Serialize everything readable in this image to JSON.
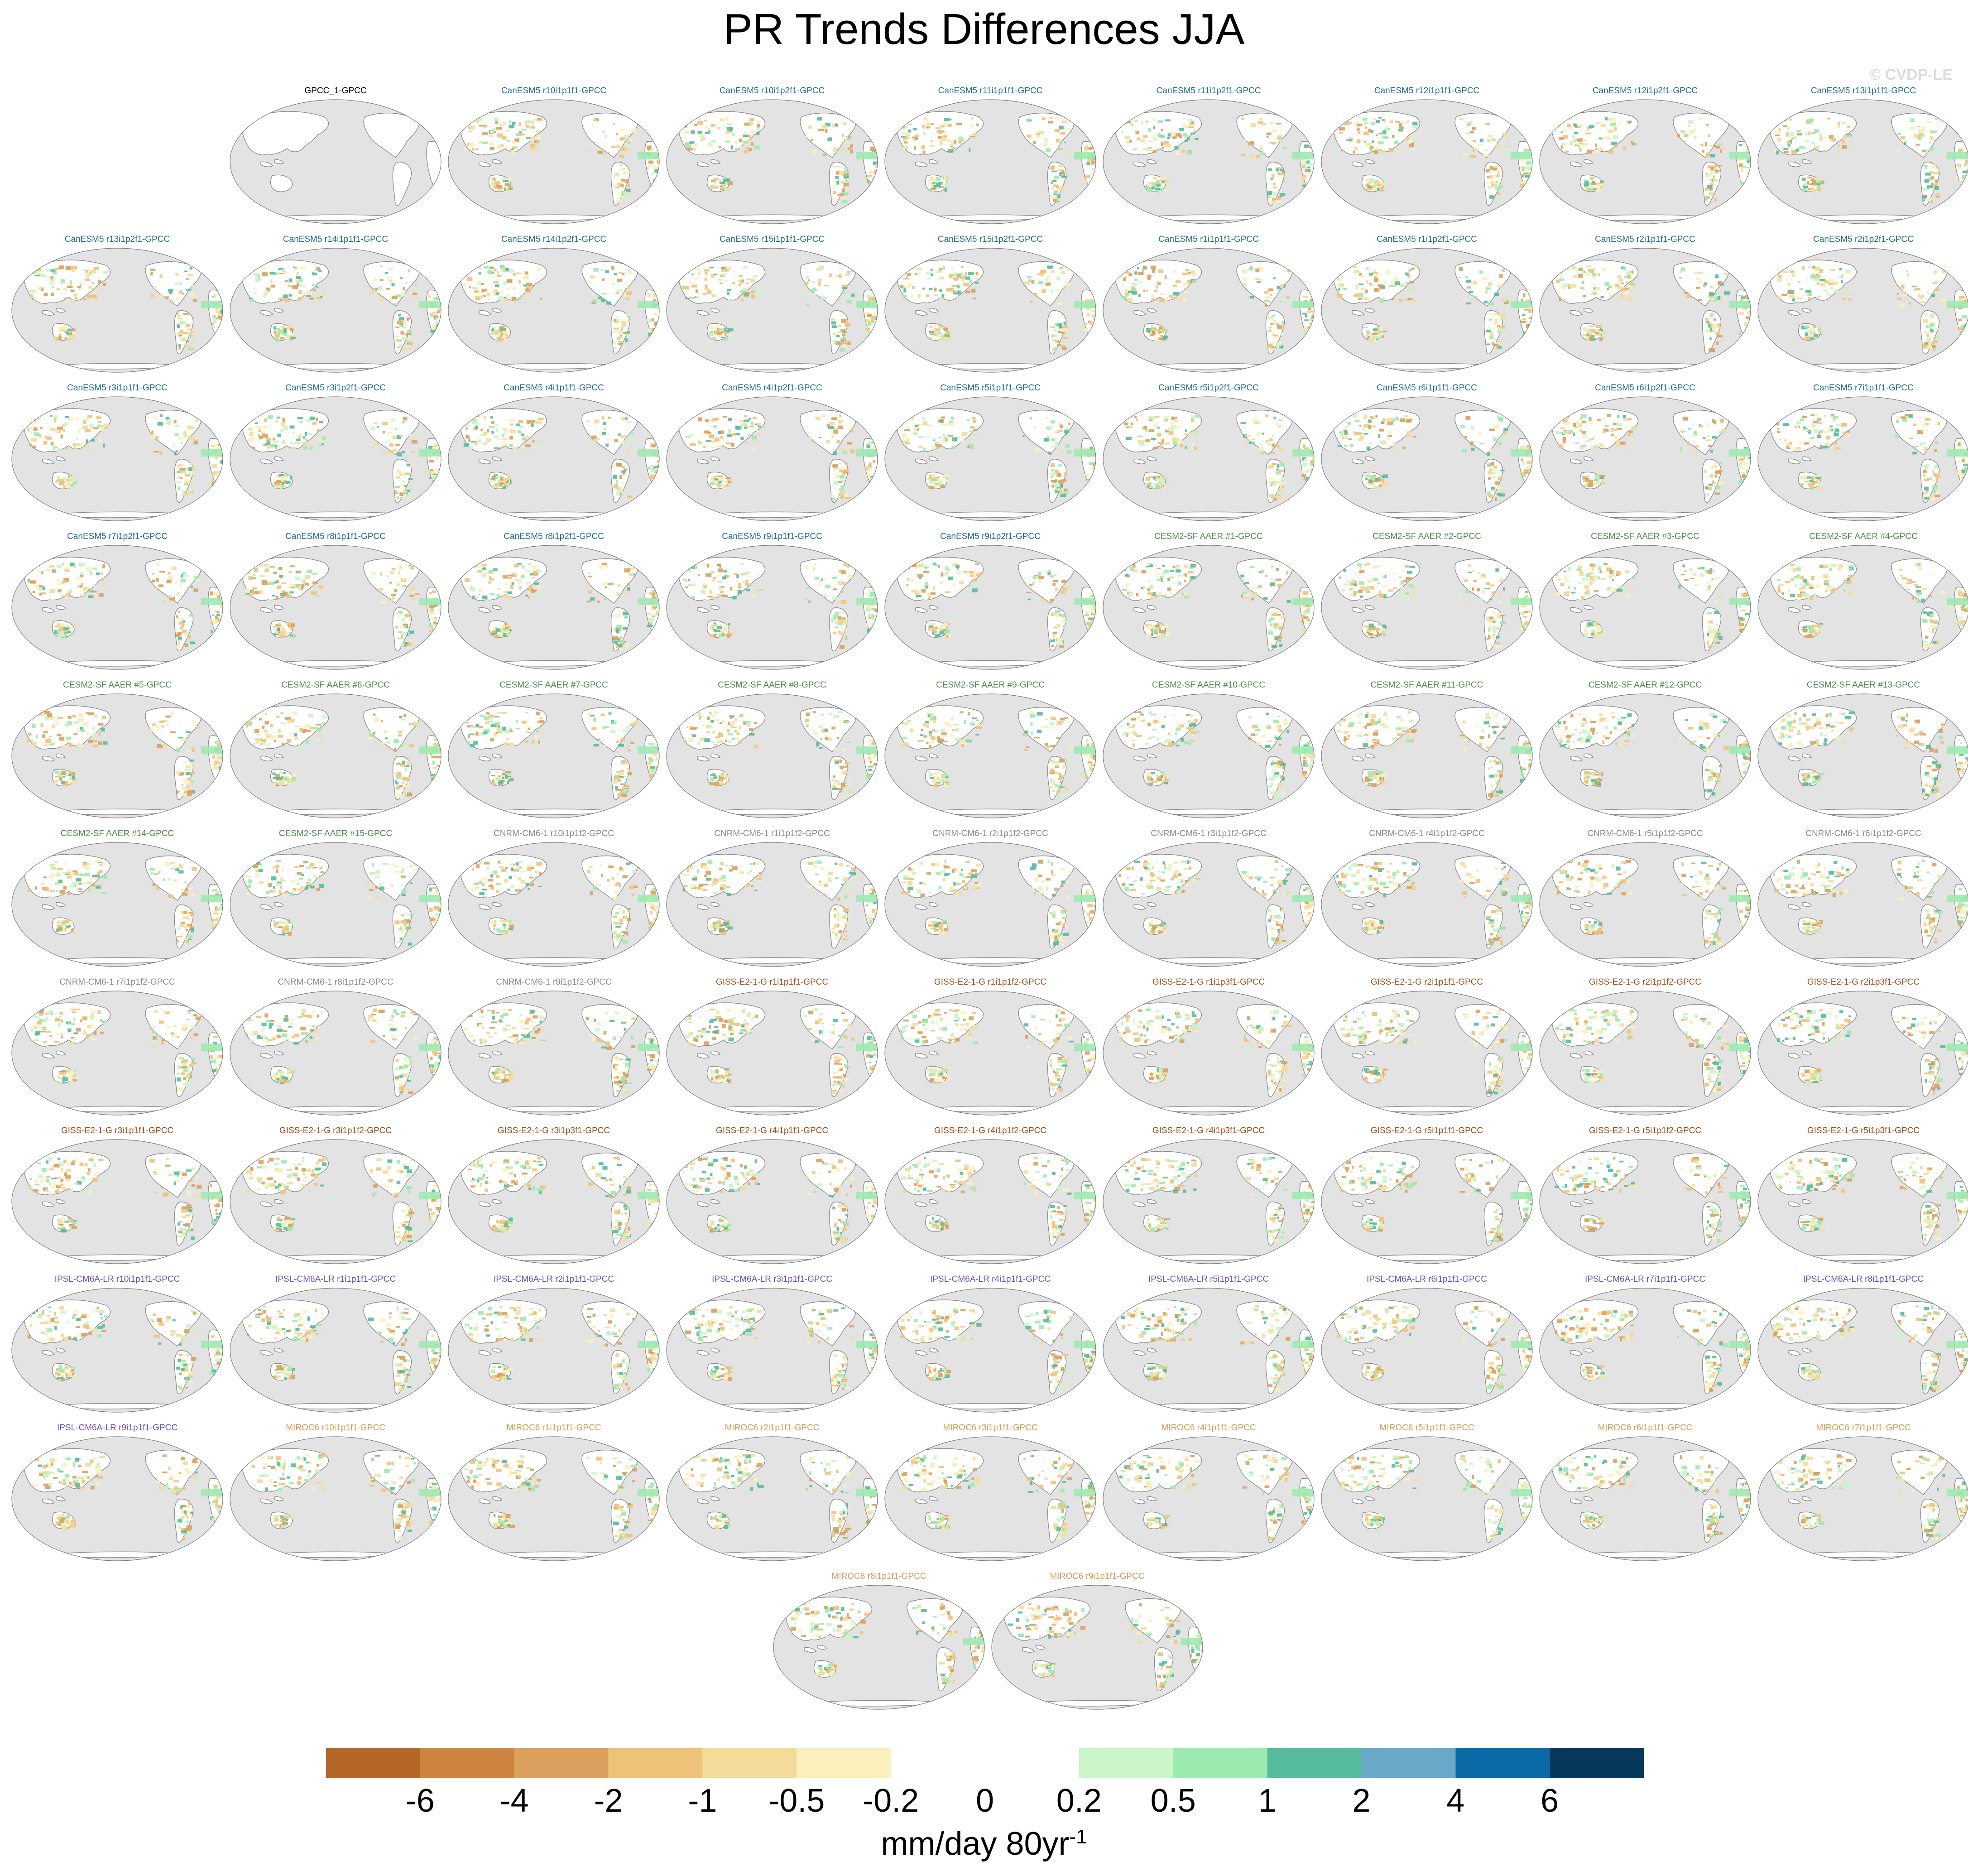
{
  "title": "PR Trends Differences JJA",
  "watermark": "© CVDP-LE",
  "colors": {
    "land": "#ffffff",
    "ocean": "#e3e3e3",
    "coast": "#8a8a8a",
    "CanESM5": "#1f6f8b",
    "CESM2": "#4f8a4f",
    "CNRM": "#8c8c8c",
    "GISS": "#a64a1a",
    "IPSL": "#6a4fc8",
    "MIROC": "#d99a5a",
    "obs": "#000000"
  },
  "panels": [
    {
      "label": "GPCC_1-GPCC",
      "model": "obs"
    },
    {
      "label": "CanESM5 r10i1p1f1-GPCC",
      "model": "CanESM5"
    },
    {
      "label": "CanESM5 r10i1p2f1-GPCC",
      "model": "CanESM5"
    },
    {
      "label": "CanESM5 r11i1p1f1-GPCC",
      "model": "CanESM5"
    },
    {
      "label": "CanESM5 r11i1p2f1-GPCC",
      "model": "CanESM5"
    },
    {
      "label": "CanESM5 r12i1p1f1-GPCC",
      "model": "CanESM5"
    },
    {
      "label": "CanESM5 r12i1p2f1-GPCC",
      "model": "CanESM5"
    },
    {
      "label": "CanESM5 r13i1p1f1-GPCC",
      "model": "CanESM5"
    },
    {
      "label": "CanESM5 r13i1p2f1-GPCC",
      "model": "CanESM5"
    },
    {
      "label": "CanESM5 r14i1p1f1-GPCC",
      "model": "CanESM5"
    },
    {
      "label": "CanESM5 r14i1p2f1-GPCC",
      "model": "CanESM5"
    },
    {
      "label": "CanESM5 r15i1p1f1-GPCC",
      "model": "CanESM5"
    },
    {
      "label": "CanESM5 r15i1p2f1-GPCC",
      "model": "CanESM5"
    },
    {
      "label": "CanESM5 r1i1p1f1-GPCC",
      "model": "CanESM5"
    },
    {
      "label": "CanESM5 r1i1p2f1-GPCC",
      "model": "CanESM5"
    },
    {
      "label": "CanESM5 r2i1p1f1-GPCC",
      "model": "CanESM5"
    },
    {
      "label": "CanESM5 r2i1p2f1-GPCC",
      "model": "CanESM5"
    },
    {
      "label": "CanESM5 r3i1p1f1-GPCC",
      "model": "CanESM5"
    },
    {
      "label": "CanESM5 r3i1p2f1-GPCC",
      "model": "CanESM5"
    },
    {
      "label": "CanESM5 r4i1p1f1-GPCC",
      "model": "CanESM5"
    },
    {
      "label": "CanESM5 r4i1p2f1-GPCC",
      "model": "CanESM5"
    },
    {
      "label": "CanESM5 r5i1p1f1-GPCC",
      "model": "CanESM5"
    },
    {
      "label": "CanESM5 r5i1p2f1-GPCC",
      "model": "CanESM5"
    },
    {
      "label": "CanESM5 r6i1p1f1-GPCC",
      "model": "CanESM5"
    },
    {
      "label": "CanESM5 r6i1p2f1-GPCC",
      "model": "CanESM5"
    },
    {
      "label": "CanESM5 r7i1p1f1-GPCC",
      "model": "CanESM5"
    },
    {
      "label": "CanESM5 r7i1p2f1-GPCC",
      "model": "CanESM5"
    },
    {
      "label": "CanESM5 r8i1p1f1-GPCC",
      "model": "CanESM5"
    },
    {
      "label": "CanESM5 r8i1p2f1-GPCC",
      "model": "CanESM5"
    },
    {
      "label": "CanESM5 r9i1p1f1-GPCC",
      "model": "CanESM5"
    },
    {
      "label": "CanESM5 r9i1p2f1-GPCC",
      "model": "CanESM5"
    },
    {
      "label": "CESM2-SF AAER #1-GPCC",
      "model": "CESM2"
    },
    {
      "label": "CESM2-SF AAER #2-GPCC",
      "model": "CESM2"
    },
    {
      "label": "CESM2-SF AAER #3-GPCC",
      "model": "CESM2"
    },
    {
      "label": "CESM2-SF AAER #4-GPCC",
      "model": "CESM2"
    },
    {
      "label": "CESM2-SF AAER #5-GPCC",
      "model": "CESM2"
    },
    {
      "label": "CESM2-SF AAER #6-GPCC",
      "model": "CESM2"
    },
    {
      "label": "CESM2-SF AAER #7-GPCC",
      "model": "CESM2"
    },
    {
      "label": "CESM2-SF AAER #8-GPCC",
      "model": "CESM2"
    },
    {
      "label": "CESM2-SF AAER #9-GPCC",
      "model": "CESM2"
    },
    {
      "label": "CESM2-SF AAER #10-GPCC",
      "model": "CESM2"
    },
    {
      "label": "CESM2-SF AAER #11-GPCC",
      "model": "CESM2"
    },
    {
      "label": "CESM2-SF AAER #12-GPCC",
      "model": "CESM2"
    },
    {
      "label": "CESM2-SF AAER #13-GPCC",
      "model": "CESM2"
    },
    {
      "label": "CESM2-SF AAER #14-GPCC",
      "model": "CESM2"
    },
    {
      "label": "CESM2-SF AAER #15-GPCC",
      "model": "CESM2"
    },
    {
      "label": "CNRM-CM6-1 r10i1p1f2-GPCC",
      "model": "CNRM"
    },
    {
      "label": "CNRM-CM6-1 r1i1p1f2-GPCC",
      "model": "CNRM"
    },
    {
      "label": "CNRM-CM6-1 r2i1p1f2-GPCC",
      "model": "CNRM"
    },
    {
      "label": "CNRM-CM6-1 r3i1p1f2-GPCC",
      "model": "CNRM"
    },
    {
      "label": "CNRM-CM6-1 r4i1p1f2-GPCC",
      "model": "CNRM"
    },
    {
      "label": "CNRM-CM6-1 r5i1p1f2-GPCC",
      "model": "CNRM"
    },
    {
      "label": "CNRM-CM6-1 r6i1p1f2-GPCC",
      "model": "CNRM"
    },
    {
      "label": "CNRM-CM6-1 r7i1p1f2-GPCC",
      "model": "CNRM"
    },
    {
      "label": "CNRM-CM6-1 r8i1p1f2-GPCC",
      "model": "CNRM"
    },
    {
      "label": "CNRM-CM6-1 r9i1p1f2-GPCC",
      "model": "CNRM"
    },
    {
      "label": "GISS-E2-1-G r1i1p1f1-GPCC",
      "model": "GISS"
    },
    {
      "label": "GISS-E2-1-G r1i1p1f2-GPCC",
      "model": "GISS"
    },
    {
      "label": "GISS-E2-1-G r1i1p3f1-GPCC",
      "model": "GISS"
    },
    {
      "label": "GISS-E2-1-G r2i1p1f1-GPCC",
      "model": "GISS"
    },
    {
      "label": "GISS-E2-1-G r2i1p1f2-GPCC",
      "model": "GISS"
    },
    {
      "label": "GISS-E2-1-G r2i1p3f1-GPCC",
      "model": "GISS"
    },
    {
      "label": "GISS-E2-1-G r3i1p1f1-GPCC",
      "model": "GISS"
    },
    {
      "label": "GISS-E2-1-G r3i1p1f2-GPCC",
      "model": "GISS"
    },
    {
      "label": "GISS-E2-1-G r3i1p3f1-GPCC",
      "model": "GISS"
    },
    {
      "label": "GISS-E2-1-G r4i1p1f1-GPCC",
      "model": "GISS"
    },
    {
      "label": "GISS-E2-1-G r4i1p1f2-GPCC",
      "model": "GISS"
    },
    {
      "label": "GISS-E2-1-G r4i1p3f1-GPCC",
      "model": "GISS"
    },
    {
      "label": "GISS-E2-1-G r5i1p1f1-GPCC",
      "model": "GISS"
    },
    {
      "label": "GISS-E2-1-G r5i1p1f2-GPCC",
      "model": "GISS"
    },
    {
      "label": "GISS-E2-1-G r5i1p3f1-GPCC",
      "model": "GISS"
    },
    {
      "label": "IPSL-CM6A-LR r10i1p1f1-GPCC",
      "model": "IPSL"
    },
    {
      "label": "IPSL-CM6A-LR r1i1p1f1-GPCC",
      "model": "IPSL"
    },
    {
      "label": "IPSL-CM6A-LR r2i1p1f1-GPCC",
      "model": "IPSL"
    },
    {
      "label": "IPSL-CM6A-LR r3i1p1f1-GPCC",
      "model": "IPSL"
    },
    {
      "label": "IPSL-CM6A-LR r4i1p1f1-GPCC",
      "model": "IPSL"
    },
    {
      "label": "IPSL-CM6A-LR r5i1p1f1-GPCC",
      "model": "IPSL"
    },
    {
      "label": "IPSL-CM6A-LR r6i1p1f1-GPCC",
      "model": "IPSL"
    },
    {
      "label": "IPSL-CM6A-LR r7i1p1f1-GPCC",
      "model": "IPSL"
    },
    {
      "label": "IPSL-CM6A-LR r8i1p1f1-GPCC",
      "model": "IPSL"
    },
    {
      "label": "IPSL-CM6A-LR r9i1p1f1-GPCC",
      "model": "IPSL"
    },
    {
      "label": "MIROC6 r10i1p1f1-GPCC",
      "model": "MIROC"
    },
    {
      "label": "MIROC6 r1i1p1f1-GPCC",
      "model": "MIROC"
    },
    {
      "label": "MIROC6 r2i1p1f1-GPCC",
      "model": "MIROC"
    },
    {
      "label": "MIROC6 r3i1p1f1-GPCC",
      "model": "MIROC"
    },
    {
      "label": "MIROC6 r4i1p1f1-GPCC",
      "model": "MIROC"
    },
    {
      "label": "MIROC6 r5i1p1f1-GPCC",
      "model": "MIROC"
    },
    {
      "label": "MIROC6 r6i1p1f1-GPCC",
      "model": "MIROC"
    },
    {
      "label": "MIROC6 r7i1p1f1-GPCC",
      "model": "MIROC"
    },
    {
      "label": "MIROC6 r8i1p1f1-GPCC",
      "model": "MIROC"
    },
    {
      "label": "MIROC6 r9i1p1f1-GPCC",
      "model": "MIROC"
    }
  ],
  "colorbar": {
    "colors": [
      "#b5672a",
      "#cc8440",
      "#dba05d",
      "#efc27a",
      "#f3dc9a",
      "#fbf0bd",
      "#ffffff",
      "#ffffff",
      "#c9f5c9",
      "#9deab0",
      "#55bb9c",
      "#6aa8c8",
      "#0a6aa8",
      "#07375a"
    ],
    "ticks": [
      "-6",
      "-4",
      "-2",
      "-1",
      "-0.5",
      "-0.2",
      "0",
      "0.2",
      "0.5",
      "1",
      "2",
      "4",
      "6"
    ],
    "units": "mm/day 80yr",
    "units_sup": "-1"
  }
}
